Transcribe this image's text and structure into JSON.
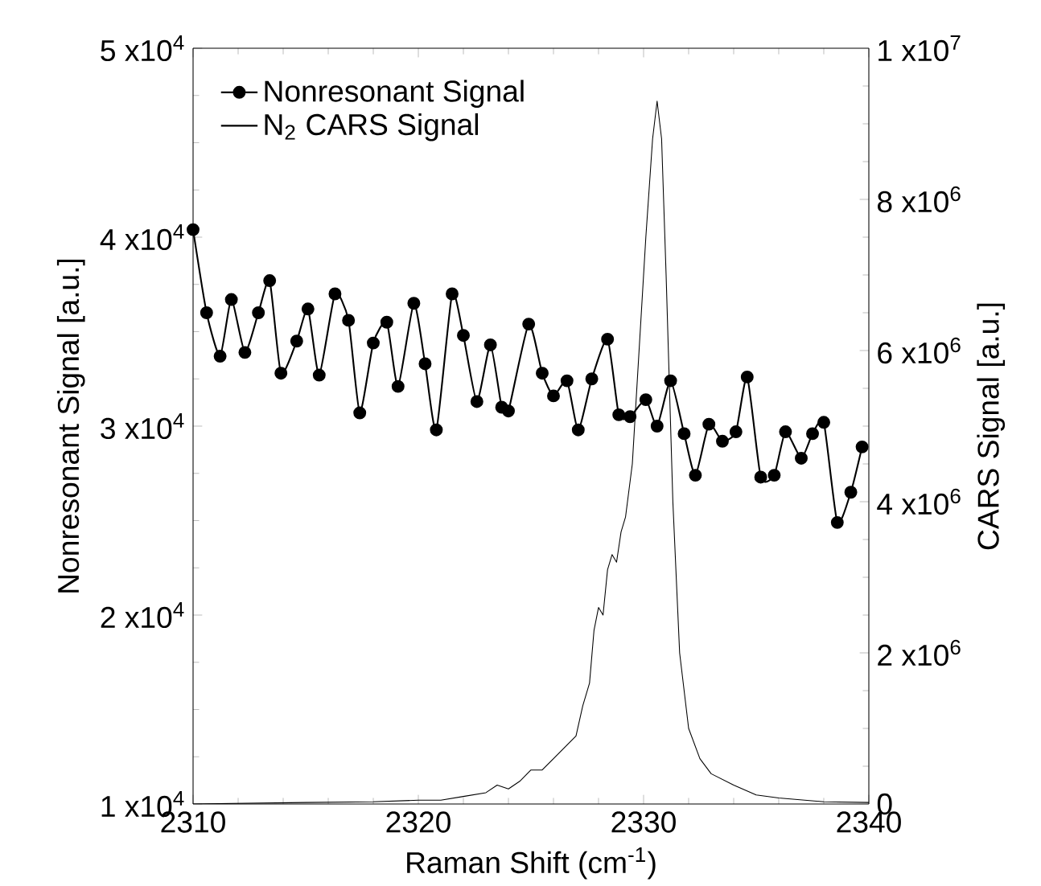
{
  "chart_data": {
    "type": "line",
    "xlabel": "Raman Shift (cm$^{-1}$)",
    "ylabel": "Nonresonant Signal [a.u.]",
    "y2label": "CARS Signal [a.u.]",
    "xlim": [
      2310,
      2340
    ],
    "xticks": [
      2310,
      2320,
      2330,
      2340
    ],
    "ylim": [
      10000,
      50000
    ],
    "yticks": [
      {
        "value": 10000,
        "label": "1 x10$^{4}$"
      },
      {
        "value": 20000,
        "label": "2 x10$^{4}$"
      },
      {
        "value": 30000,
        "label": "3 x10$^{4}$"
      },
      {
        "value": 40000,
        "label": "4 x10$^{4}$"
      },
      {
        "value": 50000,
        "label": "5 x10$^{4}$"
      }
    ],
    "y2lim": [
      0,
      10000000
    ],
    "y2ticks": [
      0,
      {
        "value": 2000000,
        "label": "2 x10$^{6}$"
      },
      {
        "value": 4000000,
        "label": "4 x10$^{6}$"
      },
      {
        "value": 6000000,
        "label": "6 x10$^{6}$"
      },
      {
        "value": 8000000,
        "label": "8 x10$^{6}$"
      },
      {
        "value": 10000000,
        "label": "1 x10$^{7}$"
      }
    ],
    "legend": "top left",
    "grid": false,
    "series": [
      {
        "name": "Nonresonant Signal",
        "color": "#000000",
        "marker": "circle",
        "x": [
          2310.0,
          2310.6,
          2311.2,
          2311.7,
          2312.3,
          2312.9,
          2313.4,
          2313.9,
          2314.6,
          2315.1,
          2315.6,
          2316.3,
          2316.9,
          2317.4,
          2318.0,
          2318.6,
          2319.1,
          2319.8,
          2320.3,
          2320.8,
          2321.5,
          2322.0,
          2322.6,
          2323.2,
          2323.7,
          2324.0,
          2324.9,
          2325.5,
          2326.0,
          2326.6,
          2327.1,
          2327.7,
          2328.4,
          2328.9,
          2329.4,
          2330.1,
          2330.6,
          2331.2,
          2331.8,
          2332.3,
          2332.9,
          2333.5,
          2334.1,
          2334.6,
          2335.2,
          2335.8,
          2336.3,
          2337.0,
          2337.5,
          2338.0,
          2338.6,
          2339.2,
          2339.7
        ],
        "values": [
          40400,
          36000,
          33700,
          36700,
          33900,
          36000,
          37700,
          32800,
          34500,
          36200,
          32700,
          37000,
          35600,
          30700,
          34400,
          35500,
          32100,
          36500,
          33300,
          29800,
          37000,
          34800,
          31300,
          34300,
          31000,
          30800,
          35400,
          32800,
          31600,
          32400,
          29800,
          32500,
          34600,
          30600,
          30500,
          31400,
          30000,
          32400,
          29600,
          27400,
          30100,
          29200,
          29700,
          32600,
          27300,
          27400,
          29700,
          28300,
          29600,
          30200,
          24900,
          26500,
          28900
        ]
      },
      {
        "name": "N$_{2}$ CARS Signal",
        "color": "#000000",
        "axis": "y2",
        "marker": "none",
        "x": [
          2310,
          2315,
          2318,
          2320,
          2321,
          2322,
          2323,
          2323.5,
          2324,
          2324.5,
          2325,
          2325.5,
          2326,
          2326.5,
          2327,
          2327.3,
          2327.6,
          2327.8,
          2328,
          2328.2,
          2328.4,
          2328.6,
          2328.8,
          2329,
          2329.2,
          2329.5,
          2329.8,
          2330.1,
          2330.4,
          2330.6,
          2330.8,
          2331,
          2331.3,
          2331.6,
          2332,
          2332.5,
          2333,
          2334,
          2335,
          2336,
          2338,
          2340
        ],
        "values": [
          0,
          20000,
          30000,
          50000,
          50000,
          100000,
          150000,
          250000,
          200000,
          300000,
          450000,
          450000,
          600000,
          750000,
          900000,
          1300000,
          1600000,
          2300000,
          2600000,
          2500000,
          3100000,
          3300000,
          3200000,
          3600000,
          3800000,
          4500000,
          6000000,
          7500000,
          8800000,
          9300000,
          8800000,
          7000000,
          4000000,
          2000000,
          1000000,
          600000,
          400000,
          250000,
          120000,
          80000,
          30000,
          20000
        ]
      }
    ]
  }
}
